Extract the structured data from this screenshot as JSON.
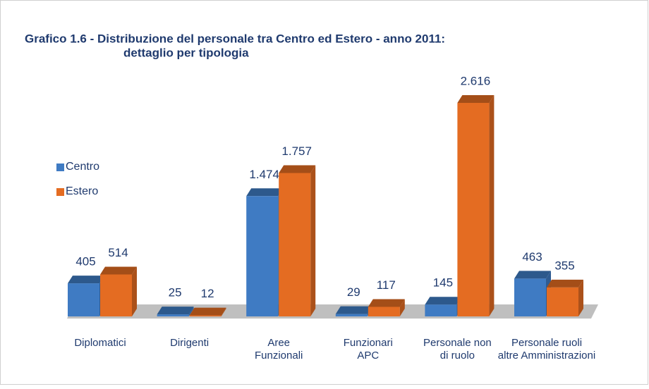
{
  "chart_data": {
    "type": "bar3d",
    "title": [
      "Grafico 1.6 - Distribuzione del personale tra Centro ed Estero - anno 2011:",
      "dettaglio per tipologia"
    ],
    "categories": [
      [
        "Diplomatici"
      ],
      [
        "Dirigenti"
      ],
      [
        "Aree",
        "Funzionali"
      ],
      [
        "Funzionari",
        "APC"
      ],
      [
        "Personale non",
        "di ruolo"
      ],
      [
        "Personale ruoli",
        "altre Amministrazioni"
      ]
    ],
    "series": [
      {
        "name": "Centro",
        "color": "#3f7bc3",
        "values": [
          405,
          25,
          1474,
          29,
          145,
          463
        ],
        "value_labels": [
          "405",
          "25",
          "1.474",
          "29",
          "145",
          "463"
        ]
      },
      {
        "name": "Estero",
        "color": "#e46c22",
        "values": [
          514,
          12,
          1757,
          117,
          2616,
          355
        ],
        "value_labels": [
          "514",
          "12",
          "1.757",
          "117",
          "2.616",
          "355"
        ]
      }
    ]
  }
}
